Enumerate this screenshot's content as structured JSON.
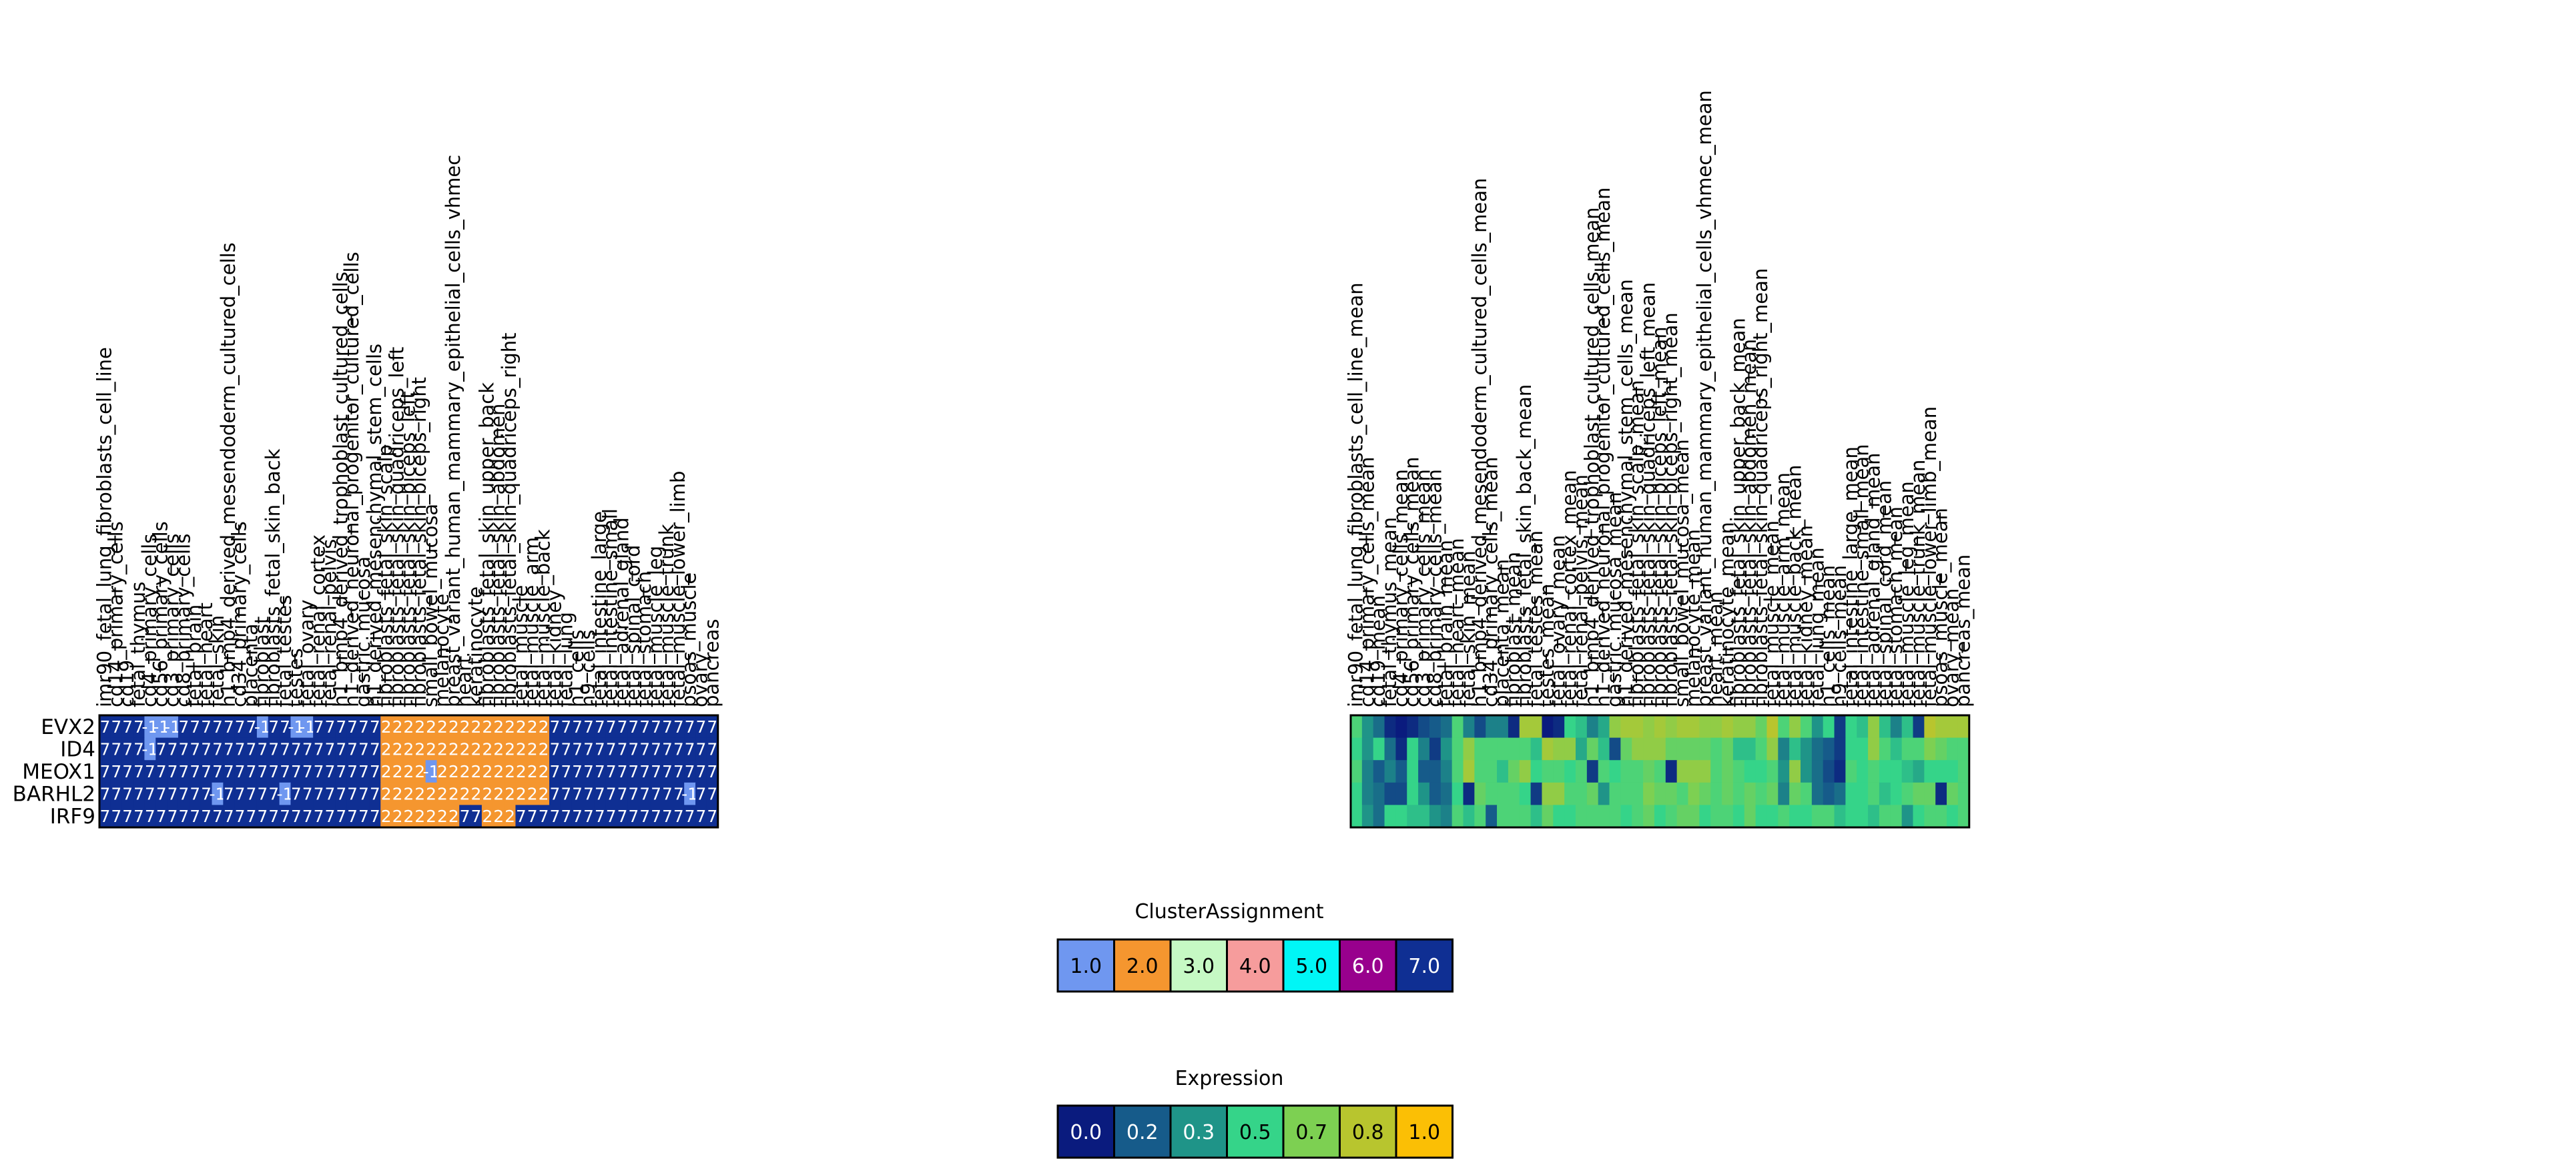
{
  "chart_data": [
    {
      "type": "heatmap",
      "panel": "cluster-assignment",
      "rows": [
        "EVX2",
        "ID4",
        "MEOX1",
        "BARHL2",
        "IRF9"
      ],
      "columns": [
        "imr90_fetal_lung_fibroblasts_cell_line",
        "cd14_primary_cells",
        "cd19",
        "fetal_thymus",
        "cd4_primary_cells",
        "cd56_primary_cells",
        "cd3_primary_cells",
        "cd8_primary_cells",
        "fetal_brain",
        "fetal_heart",
        "fetal_skin",
        "h1_bmp4_derived_mesendoderm_cultured_cells",
        "cd34_primary_cells",
        "placenta",
        "fibroblast",
        "fibroblasts_fetal_skin_back",
        "fetal_testes",
        "testes",
        "fetal_ovary",
        "fetal_renal_cortex",
        "fetal_renal_pelvis",
        "h1_bmp4_derived_trophoblast_cultured_cells",
        "h1_derived_neuronal_progenitor_cultured_cells",
        "gastric_mucosa",
        "h1_derived_mesenchymal_stem_cells",
        "fibroblasts_fetal_skin_scalp",
        "fibroblasts_fetal_skin_quadriceps_left",
        "fibroblasts_fetal_skin_biceps_left",
        "fibroblasts_fetal_skin_biceps_right",
        "small_bowel_mucosa",
        "melanocyte",
        "breast_variant_human_mammary_epithelial_cells_vhmec",
        "heart",
        "keratinocyte",
        "fibroblasts_fetal_skin_upper_back",
        "fibroblasts_fetal_skin_abdomen",
        "fibroblasts_fetal_skin_quadriceps_right",
        "fetal_muscle",
        "fetal_muscle_arm",
        "fetal_muscle_back",
        "fetal_kidney",
        "fetal_lung",
        "h1_cells",
        "h9_cells",
        "fetal_intestine_large",
        "fetal_intestine_small",
        "fetal_adrenal_gland",
        "fetal_spinal_cord",
        "fetal_stomach",
        "fetal_muscle_leg",
        "fetal_muscle_trunk",
        "fetal_muscle_lower_limb",
        "psoas_muscle",
        "ovary",
        "pancreas"
      ],
      "values": [
        [
          7,
          7,
          7,
          7,
          -1,
          -1,
          -1,
          7,
          7,
          7,
          7,
          7,
          7,
          7,
          -1,
          7,
          7,
          -1,
          -1,
          7,
          7,
          7,
          7,
          7,
          7,
          2,
          2,
          2,
          2,
          2,
          2,
          2,
          2,
          2,
          2,
          2,
          2,
          2,
          2,
          2,
          7,
          7,
          7,
          7,
          7,
          7,
          7,
          7,
          7,
          7,
          7,
          7,
          7,
          7,
          7
        ],
        [
          7,
          7,
          7,
          7,
          -1,
          7,
          7,
          7,
          7,
          7,
          7,
          7,
          7,
          7,
          7,
          7,
          7,
          7,
          7,
          7,
          7,
          7,
          7,
          7,
          7,
          2,
          2,
          2,
          2,
          2,
          2,
          2,
          2,
          2,
          2,
          2,
          2,
          2,
          2,
          2,
          7,
          7,
          7,
          7,
          7,
          7,
          7,
          7,
          7,
          7,
          7,
          7,
          7,
          7,
          7
        ],
        [
          7,
          7,
          7,
          7,
          7,
          7,
          7,
          7,
          7,
          7,
          7,
          7,
          7,
          7,
          7,
          7,
          7,
          7,
          7,
          7,
          7,
          7,
          7,
          7,
          7,
          2,
          2,
          2,
          2,
          -1,
          2,
          2,
          2,
          2,
          2,
          2,
          2,
          2,
          2,
          2,
          7,
          7,
          7,
          7,
          7,
          7,
          7,
          7,
          7,
          7,
          7,
          7,
          7,
          7,
          7
        ],
        [
          7,
          7,
          7,
          7,
          7,
          7,
          7,
          7,
          7,
          7,
          -1,
          7,
          7,
          7,
          7,
          7,
          -1,
          7,
          7,
          7,
          7,
          7,
          7,
          7,
          7,
          2,
          2,
          2,
          2,
          2,
          2,
          2,
          2,
          2,
          2,
          2,
          2,
          2,
          2,
          2,
          7,
          7,
          7,
          7,
          7,
          7,
          7,
          7,
          7,
          7,
          7,
          7,
          -1,
          7,
          7
        ],
        [
          7,
          7,
          7,
          7,
          7,
          7,
          7,
          7,
          7,
          7,
          7,
          7,
          7,
          7,
          7,
          7,
          7,
          7,
          7,
          7,
          7,
          7,
          7,
          7,
          7,
          2,
          2,
          2,
          2,
          2,
          2,
          2,
          7,
          7,
          2,
          2,
          2,
          7,
          7,
          7,
          7,
          7,
          7,
          7,
          7,
          7,
          7,
          7,
          7,
          7,
          7,
          7,
          7,
          7,
          7
        ]
      ],
      "cell_labels": [
        [
          "7",
          "7",
          "7",
          "7",
          "-1",
          "-1",
          "-1",
          "7",
          "7",
          "7",
          "7",
          "7",
          "7",
          "7",
          "-1",
          "7",
          "7",
          "-1",
          "-1",
          "7",
          "7",
          "7",
          "7",
          "7",
          "7",
          "2",
          "2",
          "2",
          "2",
          "2",
          "2",
          "2",
          "2",
          "2",
          "2",
          "2",
          "2",
          "2",
          "2",
          "2",
          "7",
          "7",
          "7",
          "7",
          "7",
          "7",
          "7",
          "7",
          "7",
          "7",
          "7",
          "7",
          "7",
          "7",
          "7"
        ],
        [
          "7",
          "7",
          "7",
          "7",
          "-1",
          "7",
          "7",
          "7",
          "7",
          "7",
          "7",
          "7",
          "7",
          "7",
          "7",
          "7",
          "7",
          "7",
          "7",
          "7",
          "7",
          "7",
          "7",
          "7",
          "7",
          "2",
          "2",
          "2",
          "2",
          "2",
          "2",
          "2",
          "2",
          "2",
          "2",
          "2",
          "2",
          "2",
          "2",
          "2",
          "7",
          "7",
          "7",
          "7",
          "7",
          "7",
          "7",
          "7",
          "7",
          "7",
          "7",
          "7",
          "7",
          "7",
          "7"
        ],
        [
          "7",
          "7",
          "7",
          "7",
          "7",
          "7",
          "7",
          "7",
          "7",
          "7",
          "7",
          "7",
          "7",
          "7",
          "7",
          "7",
          "7",
          "7",
          "7",
          "7",
          "7",
          "7",
          "7",
          "7",
          "7",
          "2",
          "2",
          "2",
          "2",
          "-1",
          "2",
          "2",
          "2",
          "2",
          "2",
          "2",
          "2",
          "2",
          "2",
          "2",
          "7",
          "7",
          "7",
          "7",
          "7",
          "7",
          "7",
          "7",
          "7",
          "7",
          "7",
          "7",
          "7",
          "7",
          "7"
        ],
        [
          "7",
          "7",
          "7",
          "7",
          "7",
          "7",
          "7",
          "7",
          "7",
          "7",
          "-1",
          "7",
          "7",
          "7",
          "7",
          "7",
          "-1",
          "7",
          "7",
          "7",
          "7",
          "7",
          "7",
          "7",
          "7",
          "2",
          "2",
          "2",
          "2",
          "2",
          "2",
          "2",
          "2",
          "2",
          "2",
          "2",
          "2",
          "2",
          "2",
          "2",
          "7",
          "7",
          "7",
          "7",
          "7",
          "7",
          "7",
          "7",
          "7",
          "7",
          "7",
          "7",
          "-1",
          "7",
          "7"
        ],
        [
          "7",
          "7",
          "7",
          "7",
          "7",
          "7",
          "7",
          "7",
          "7",
          "7",
          "7",
          "7",
          "7",
          "7",
          "7",
          "7",
          "7",
          "7",
          "7",
          "7",
          "7",
          "7",
          "7",
          "7",
          "7",
          "2",
          "2",
          "2",
          "2",
          "2",
          "2",
          "2",
          "7",
          "7",
          "2",
          "2",
          "2",
          "7",
          "7",
          "7",
          "7",
          "7",
          "7",
          "7",
          "7",
          "7",
          "7",
          "7",
          "7",
          "7",
          "7",
          "7",
          "7",
          "7",
          "7"
        ]
      ],
      "color_map": {
        "-1": "#6f97f0",
        "1": "#6f97f0",
        "2": "#f5962f",
        "3": "#c6f9c4",
        "4": "#f69c9c",
        "5": "#00f6f6",
        "6": "#98008d",
        "7": "#0f2f93"
      }
    },
    {
      "type": "heatmap",
      "panel": "expression",
      "rows": [
        "EVX2",
        "ID4",
        "MEOX1",
        "BARHL2",
        "IRF9"
      ],
      "columns": [
        "imr90_fetal_lung_fibroblasts_cell_line_mean",
        "cd14_primary_cells_mean",
        "cd19_mean",
        "fetal_thymus_mean",
        "cd4_primary_cells_mean",
        "cd56_primary_cells_mean",
        "cd3_primary_cells_mean",
        "cd8_primary_cells_mean",
        "fetal_brain_mean",
        "fetal_heart_mean",
        "fetal_skin_mean",
        "h1_bmp4_derived_mesendoderm_cultured_cells_mean",
        "cd34_primary_cells_mean",
        "placenta_mean",
        "fibroblast_mean",
        "fibroblasts_fetal_skin_back_mean",
        "fetal_testes_mean",
        "testes_mean",
        "fetal_ovary_mean",
        "fetal_renal_cortex_mean",
        "fetal_renal_pelvis_mean",
        "h1_bmp4_derived_trophoblast_cultured_cells_mean",
        "h1_derived_neuronal_progenitor_cultured_cells_mean",
        "gastric_mucosa_mean",
        "h1_derived_mesenchymal_stem_cells_mean",
        "fibroblasts_fetal_skin_scalp_mean",
        "fibroblasts_fetal_skin_quadriceps_left_mean",
        "fibroblasts_fetal_skin_biceps_left_mean",
        "fibroblasts_fetal_skin_biceps_right_mean",
        "small_bowel_mucosa_mean",
        "melanocyte_mean",
        "breast_variant_human_mammary_epithelial_cells_vhmec_mean",
        "heart_mean",
        "keratinocyte_mean",
        "fibroblasts_fetal_skin_upper_back_mean",
        "fibroblasts_fetal_skin_abdomen_mean",
        "fibroblasts_fetal_skin_quadriceps_right_mean",
        "fetal_muscle_mean",
        "fetal_muscle_arm_mean",
        "fetal_muscle_back_mean",
        "fetal_kidney_mean",
        "fetal_lung_mean",
        "h1_cells_mean",
        "h9_cells_mean",
        "fetal_intestine_large_mean",
        "fetal_intestine_small_mean",
        "fetal_adrenal_gland_mean",
        "fetal_spinal_cord_mean",
        "fetal_stomach_mean",
        "fetal_muscle_leg_mean",
        "fetal_muscle_trunk_mean",
        "fetal_muscle_lower_limb_mean",
        "psoas_muscle_mean",
        "ovary_mean",
        "pancreas_mean"
      ],
      "values": [
        [
          0.55,
          0.35,
          0.25,
          0.05,
          0.0,
          0.05,
          0.15,
          0.2,
          0.25,
          0.55,
          0.3,
          0.15,
          0.3,
          0.3,
          0.05,
          0.75,
          0.75,
          0.0,
          0.05,
          0.5,
          0.45,
          0.3,
          0.4,
          0.7,
          0.75,
          0.75,
          0.7,
          0.75,
          0.7,
          0.75,
          0.75,
          0.7,
          0.7,
          0.75,
          0.7,
          0.7,
          0.6,
          0.8,
          0.55,
          0.7,
          0.55,
          0.35,
          0.5,
          0.1,
          0.5,
          0.45,
          0.7,
          0.45,
          0.3,
          0.45,
          0.1,
          0.8,
          0.75,
          0.75,
          0.75
        ],
        [
          0.5,
          0.35,
          0.5,
          0.25,
          0.05,
          0.5,
          0.3,
          0.1,
          0.35,
          0.55,
          0.7,
          0.55,
          0.55,
          0.55,
          0.55,
          0.55,
          0.45,
          0.75,
          0.7,
          0.7,
          0.4,
          0.6,
          0.45,
          0.15,
          0.6,
          0.7,
          0.7,
          0.7,
          0.6,
          0.6,
          0.6,
          0.6,
          0.55,
          0.6,
          0.45,
          0.45,
          0.55,
          0.7,
          0.3,
          0.45,
          0.35,
          0.25,
          0.2,
          0.1,
          0.5,
          0.5,
          0.7,
          0.55,
          0.45,
          0.55,
          0.55,
          0.65,
          0.6,
          0.55,
          0.55
        ],
        [
          0.55,
          0.3,
          0.2,
          0.3,
          0.2,
          0.5,
          0.2,
          0.2,
          0.3,
          0.55,
          0.75,
          0.55,
          0.55,
          0.45,
          0.6,
          0.7,
          0.5,
          0.55,
          0.55,
          0.5,
          0.55,
          0.1,
          0.55,
          0.5,
          0.55,
          0.55,
          0.6,
          0.55,
          0.05,
          0.7,
          0.7,
          0.7,
          0.55,
          0.6,
          0.55,
          0.5,
          0.5,
          0.55,
          0.35,
          0.7,
          0.35,
          0.25,
          0.15,
          0.05,
          0.55,
          0.5,
          0.55,
          0.5,
          0.5,
          0.45,
          0.4,
          0.5,
          0.5,
          0.5,
          0.55
        ],
        [
          0.5,
          0.3,
          0.25,
          0.15,
          0.15,
          0.5,
          0.35,
          0.2,
          0.25,
          0.5,
          0.05,
          0.6,
          0.55,
          0.55,
          0.55,
          0.5,
          0.1,
          0.7,
          0.7,
          0.55,
          0.55,
          0.6,
          0.35,
          0.55,
          0.55,
          0.55,
          0.65,
          0.6,
          0.6,
          0.55,
          0.65,
          0.6,
          0.55,
          0.6,
          0.55,
          0.6,
          0.55,
          0.6,
          0.3,
          0.6,
          0.55,
          0.25,
          0.2,
          0.25,
          0.5,
          0.5,
          0.55,
          0.45,
          0.5,
          0.55,
          0.6,
          0.6,
          0.05,
          0.6,
          0.55
        ],
        [
          0.5,
          0.35,
          0.25,
          0.5,
          0.5,
          0.45,
          0.45,
          0.35,
          0.3,
          0.55,
          0.45,
          0.55,
          0.2,
          0.55,
          0.55,
          0.55,
          0.45,
          0.6,
          0.5,
          0.5,
          0.55,
          0.55,
          0.55,
          0.55,
          0.5,
          0.55,
          0.6,
          0.5,
          0.55,
          0.6,
          0.6,
          0.5,
          0.55,
          0.55,
          0.5,
          0.6,
          0.5,
          0.5,
          0.55,
          0.5,
          0.5,
          0.55,
          0.55,
          0.45,
          0.5,
          0.5,
          0.45,
          0.55,
          0.55,
          0.35,
          0.5,
          0.55,
          0.55,
          0.5,
          0.55
        ]
      ]
    }
  ],
  "legends": {
    "cluster": {
      "title": "ClusterAssignment",
      "items": [
        {
          "label": "1.0",
          "color": "#6f97f0"
        },
        {
          "label": "2.0",
          "color": "#f5962f"
        },
        {
          "label": "3.0",
          "color": "#c6f9c4"
        },
        {
          "label": "4.0",
          "color": "#f69c9c"
        },
        {
          "label": "5.0",
          "color": "#00f6f6"
        },
        {
          "label": "6.0",
          "color": "#98008d"
        },
        {
          "label": "7.0",
          "color": "#0f2f93"
        }
      ]
    },
    "expression": {
      "title": "Expression",
      "items": [
        {
          "label": "0.0",
          "color": "#0a1b7e"
        },
        {
          "label": "0.2",
          "color": "#165b8a"
        },
        {
          "label": "0.3",
          "color": "#1f9488"
        },
        {
          "label": "0.5",
          "color": "#35d489"
        },
        {
          "label": "0.7",
          "color": "#7dd052"
        },
        {
          "label": "0.8",
          "color": "#b8c52e"
        },
        {
          "label": "1.0",
          "color": "#fbbf05"
        }
      ]
    }
  }
}
